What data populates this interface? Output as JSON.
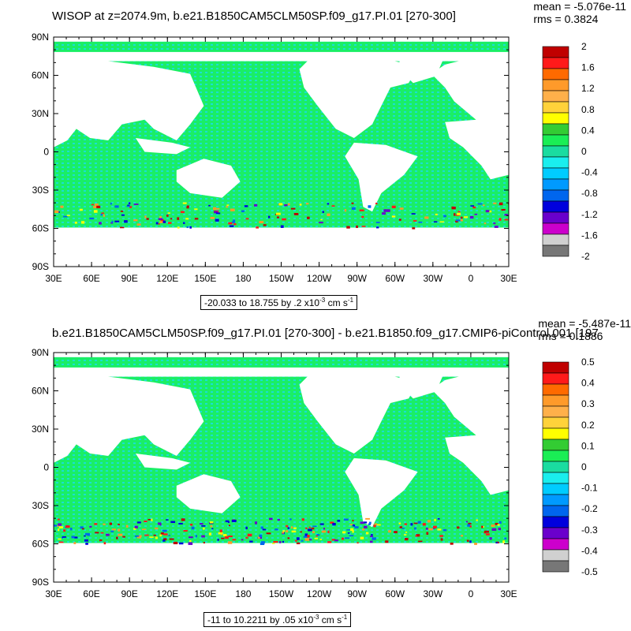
{
  "panels": [
    {
      "title": "WISOP at z=2074.9m, b.e21.B1850CAM5CLM50SP.f09_g17.PI.01 [270-300]",
      "mean": "mean = -5.076e-11",
      "rms": "rms = 0.3824",
      "lat_labels": [
        "90N",
        "60N",
        "30N",
        "0",
        "30S",
        "60S",
        "90S"
      ],
      "lon_labels": [
        "30E",
        "60E",
        "90E",
        "120E",
        "150E",
        "180",
        "150W",
        "120W",
        "90W",
        "60W",
        "30W",
        "0",
        "30E"
      ],
      "info_prefix": "-20.033 to 18.755 by .2 x10",
      "info_exp": "-3",
      "info_unit": " cm s",
      "info_unit_exp": "-1",
      "colorbar_labels": [
        "2",
        "1.6",
        "1.2",
        "0.8",
        "0.4",
        "0",
        "-0.4",
        "-0.8",
        "-1.2",
        "-1.6",
        "-2"
      ],
      "colors": [
        "#c00000",
        "#ff1a1a",
        "#ff6a00",
        "#ff9a2a",
        "#ffb04a",
        "#ffd23a",
        "#ffff00",
        "#33cc33",
        "#1aee55",
        "#1adca0",
        "#1aeeee",
        "#00ccff",
        "#009aff",
        "#0066ee",
        "#0000dd",
        "#6a00cc",
        "#cc00cc",
        "#d0d0d0",
        "#777777"
      ]
    },
    {
      "title": "b.e21.B1850CAM5CLM50SP.f09_g17.PI.01 [270-300] - b.e21.B1850.f09_g17.CMIP6-piControl.001 [197",
      "mean": "mean = -5.487e-11",
      "rms": "rms = 0.1886",
      "lat_labels": [
        "90N",
        "60N",
        "30N",
        "0",
        "30S",
        "60S",
        "90S"
      ],
      "lon_labels": [
        "30E",
        "60E",
        "90E",
        "120E",
        "150E",
        "180",
        "150W",
        "120W",
        "90W",
        "60W",
        "30W",
        "0",
        "30E"
      ],
      "info_prefix": "-11 to 10.2211 by .05 x10",
      "info_exp": "-3",
      "info_unit": " cm s",
      "info_unit_exp": "-1",
      "colorbar_labels": [
        "0.5",
        "0.4",
        "0.3",
        "0.2",
        "0.1",
        "0",
        "-0.1",
        "-0.2",
        "-0.3",
        "-0.4",
        "-0.5"
      ],
      "colors": [
        "#c00000",
        "#ff1a1a",
        "#ff6a00",
        "#ff9a2a",
        "#ffb04a",
        "#ffd23a",
        "#ffff00",
        "#33cc33",
        "#1aee55",
        "#1adca0",
        "#1aeeee",
        "#00ccff",
        "#009aff",
        "#0066ee",
        "#0000dd",
        "#6a00cc",
        "#cc00cc",
        "#d0d0d0",
        "#777777"
      ]
    }
  ],
  "ocean_color": "#1aee66",
  "ocean_texture_color": "#1ae0d0",
  "land_color": "#ffffff"
}
